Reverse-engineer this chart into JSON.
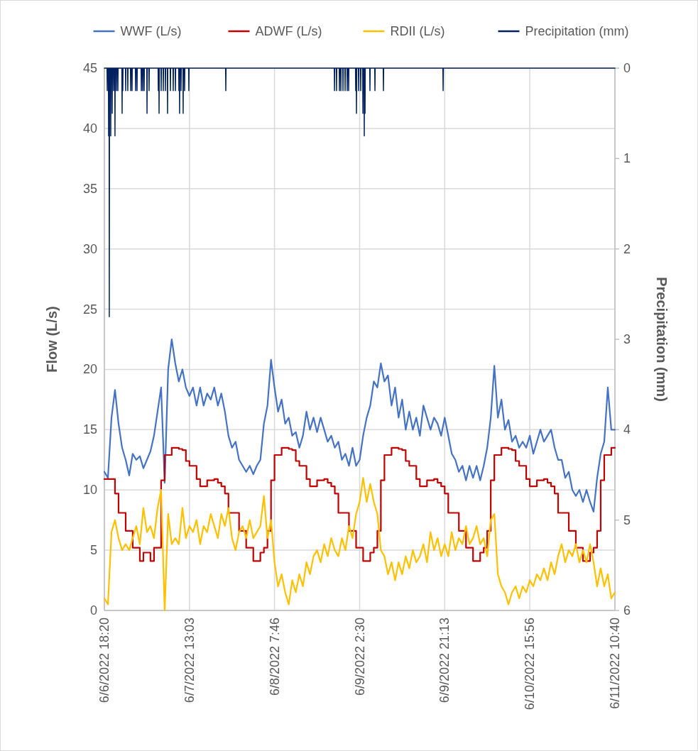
{
  "chart_data": {
    "type": "line",
    "ylabel": "Flow (L/s)",
    "y2label": "Precipitation (mm)",
    "xlim": [
      "2022-06-06T18:20",
      "2022-06-11T10:40"
    ],
    "xticks": [
      {
        "value": "2022-06-06T18:20",
        "label": "6/6/2022 18:20"
      },
      {
        "value": "2022-06-07T13:03",
        "label": "6/7/2022 13:03"
      },
      {
        "value": "2022-06-08T07:46",
        "label": "6/8/2022 7:46"
      },
      {
        "value": "2022-06-09T02:30",
        "label": "6/9/2022 2:30"
      },
      {
        "value": "2022-06-09T21:13",
        "label": "6/9/2022 21:13"
      },
      {
        "value": "2022-06-10T15:56",
        "label": "6/10/2022 15:56"
      },
      {
        "value": "2022-06-11T10:40",
        "label": "6/11/2022 10:40"
      }
    ],
    "ylim": [
      0,
      45
    ],
    "yticks": [
      0,
      5,
      10,
      15,
      20,
      25,
      30,
      35,
      40,
      45
    ],
    "y2lim": [
      6,
      0
    ],
    "y2ticks": [
      0,
      1,
      2,
      3,
      4,
      5,
      6
    ],
    "grid": true,
    "legend": "top",
    "x": [
      "2022-06-06T18:20",
      "2022-06-06T19:07",
      "2022-06-06T19:54",
      "2022-06-06T20:40",
      "2022-06-06T21:27",
      "2022-06-06T22:14",
      "2022-06-06T23:01",
      "2022-06-06T23:48",
      "2022-06-07T00:34",
      "2022-06-07T01:21",
      "2022-06-07T02:08",
      "2022-06-07T02:55",
      "2022-06-07T03:42",
      "2022-06-07T04:28",
      "2022-06-07T05:15",
      "2022-06-07T06:02",
      "2022-06-07T06:49",
      "2022-06-07T07:36",
      "2022-06-07T08:22",
      "2022-06-07T09:09",
      "2022-06-07T09:56",
      "2022-06-07T10:43",
      "2022-06-07T11:30",
      "2022-06-07T12:16",
      "2022-06-07T13:03",
      "2022-06-07T13:50",
      "2022-06-07T14:37",
      "2022-06-07T15:24",
      "2022-06-07T16:10",
      "2022-06-07T16:57",
      "2022-06-07T17:44",
      "2022-06-07T18:31",
      "2022-06-07T19:18",
      "2022-06-07T20:04",
      "2022-06-07T20:51",
      "2022-06-07T21:38",
      "2022-06-07T22:25",
      "2022-06-07T23:12",
      "2022-06-07T23:58",
      "2022-06-08T00:45",
      "2022-06-08T01:32",
      "2022-06-08T02:19",
      "2022-06-08T03:06",
      "2022-06-08T03:52",
      "2022-06-08T04:39",
      "2022-06-08T05:26",
      "2022-06-08T06:13",
      "2022-06-08T07:00",
      "2022-06-08T07:46",
      "2022-06-08T08:33",
      "2022-06-08T09:20",
      "2022-06-08T10:07",
      "2022-06-08T10:54",
      "2022-06-08T11:40",
      "2022-06-08T12:27",
      "2022-06-08T13:14",
      "2022-06-08T14:01",
      "2022-06-08T14:48",
      "2022-06-08T15:34",
      "2022-06-08T16:21",
      "2022-06-08T17:08",
      "2022-06-08T17:55",
      "2022-06-08T18:42",
      "2022-06-08T19:28",
      "2022-06-08T20:15",
      "2022-06-08T21:02",
      "2022-06-08T21:49",
      "2022-06-08T22:36",
      "2022-06-08T23:22",
      "2022-06-09T00:09",
      "2022-06-09T00:56",
      "2022-06-09T01:43",
      "2022-06-09T02:30",
      "2022-06-09T03:16",
      "2022-06-09T04:03",
      "2022-06-09T04:50",
      "2022-06-09T05:37",
      "2022-06-09T06:24",
      "2022-06-09T07:10",
      "2022-06-09T07:57",
      "2022-06-09T08:44",
      "2022-06-09T09:31",
      "2022-06-09T10:18",
      "2022-06-09T11:04",
      "2022-06-09T11:51",
      "2022-06-09T12:38",
      "2022-06-09T13:25",
      "2022-06-09T14:12",
      "2022-06-09T14:58",
      "2022-06-09T15:45",
      "2022-06-09T16:32",
      "2022-06-09T17:19",
      "2022-06-09T18:06",
      "2022-06-09T18:52",
      "2022-06-09T19:39",
      "2022-06-09T20:26",
      "2022-06-09T21:13",
      "2022-06-09T22:00",
      "2022-06-09T22:46",
      "2022-06-09T23:33",
      "2022-06-10T00:20",
      "2022-06-10T01:07",
      "2022-06-10T01:54",
      "2022-06-10T02:40",
      "2022-06-10T03:27",
      "2022-06-10T04:14",
      "2022-06-10T05:01",
      "2022-06-10T05:48",
      "2022-06-10T06:34",
      "2022-06-10T07:21",
      "2022-06-10T08:08",
      "2022-06-10T08:55",
      "2022-06-10T09:42",
      "2022-06-10T10:28",
      "2022-06-10T11:15",
      "2022-06-10T12:02",
      "2022-06-10T12:49",
      "2022-06-10T13:36",
      "2022-06-10T14:22",
      "2022-06-10T15:09",
      "2022-06-10T15:56",
      "2022-06-10T16:43",
      "2022-06-10T17:30",
      "2022-06-10T18:16",
      "2022-06-10T19:03",
      "2022-06-10T19:50",
      "2022-06-10T20:37",
      "2022-06-10T21:24",
      "2022-06-10T22:10",
      "2022-06-10T22:57",
      "2022-06-10T23:44",
      "2022-06-11T00:31",
      "2022-06-11T01:18",
      "2022-06-11T02:04",
      "2022-06-11T02:51",
      "2022-06-11T03:38",
      "2022-06-11T04:25",
      "2022-06-11T05:12",
      "2022-06-11T05:58",
      "2022-06-11T06:45",
      "2022-06-11T07:32",
      "2022-06-11T08:19",
      "2022-06-11T09:06",
      "2022-06-11T09:52",
      "2022-06-11T10:40"
    ],
    "series": [
      {
        "name": "WWF (L/s)",
        "color": "#4472c4",
        "values": [
          11.5,
          11.0,
          16,
          18.3,
          15.5,
          13.5,
          12.5,
          11.2,
          13,
          12.5,
          12.8,
          11.8,
          12.5,
          13.2,
          14.5,
          16.5,
          18.5,
          10.6,
          20,
          22.5,
          20.5,
          19,
          20,
          18.5,
          17.8,
          18.5,
          17,
          18.5,
          17,
          18,
          17.5,
          18.5,
          17,
          18,
          16.5,
          14.5,
          13.5,
          14,
          12.5,
          12,
          11.5,
          12,
          11.3,
          12,
          12.5,
          15.5,
          17,
          20.8,
          18.5,
          16.5,
          17.5,
          15.5,
          16,
          14.5,
          14.8,
          13.5,
          14.5,
          16.5,
          15,
          16,
          14.8,
          16,
          15,
          14,
          14.5,
          13.5,
          14,
          12.5,
          13,
          12,
          13.5,
          12,
          12.5,
          14.5,
          16,
          17,
          19,
          18.5,
          20.5,
          19,
          19.5,
          17,
          18.5,
          16,
          17.5,
          15,
          16.5,
          15,
          16,
          14.5,
          17,
          16,
          15,
          16,
          15.5,
          14.5,
          16,
          14.5,
          13,
          12.5,
          11.5,
          12,
          10.8,
          12,
          11,
          12,
          10.8,
          12,
          13.5,
          16,
          20.3,
          16,
          17.5,
          15,
          15.8,
          14,
          14.5,
          13.5,
          14,
          13.5,
          14.5,
          13,
          14,
          15,
          14,
          14.5,
          15,
          13.5,
          12.5,
          12.5,
          11,
          11.5,
          10,
          9.5,
          10,
          9,
          10,
          9,
          8.2,
          11,
          13,
          14,
          18.5,
          15,
          15
        ]
      },
      {
        "name": "ADWF (L/s)",
        "color": "#c00000",
        "type": "step",
        "values": [
          10.9,
          10.9,
          10.9,
          9.7,
          8.1,
          8.1,
          6.6,
          6.6,
          5.2,
          5.2,
          4.1,
          4.8,
          4.8,
          4.1,
          5.2,
          5.2,
          10.8,
          12.9,
          12.9,
          13.5,
          13.5,
          13.4,
          13.3,
          12.4,
          12.0,
          12.0,
          10.9,
          10.3,
          10.3,
          10.8,
          10.8,
          10.9,
          10.6,
          10.3,
          9.7,
          8.1,
          8.1,
          8.1,
          6.6,
          6.6,
          5.2,
          5.2,
          4.1,
          4.1,
          4.8,
          5.2,
          6.6,
          10.8,
          12.9,
          12.9,
          13.5,
          13.5,
          13.4,
          13.3,
          12.4,
          12.0,
          12.0,
          10.9,
          10.3,
          10.3,
          10.8,
          10.8,
          10.9,
          10.6,
          10.3,
          9.7,
          8.1,
          8.1,
          8.1,
          6.6,
          6.6,
          5.2,
          5.2,
          4.1,
          4.1,
          4.8,
          5.2,
          6.6,
          10.8,
          12.9,
          12.9,
          13.5,
          13.5,
          13.4,
          13.3,
          12.4,
          12.0,
          12.0,
          10.9,
          10.3,
          10.3,
          10.8,
          10.8,
          10.9,
          10.6,
          10.3,
          9.7,
          8.1,
          8.1,
          8.1,
          6.6,
          6.6,
          5.2,
          5.2,
          4.1,
          4.1,
          4.8,
          5.2,
          6.6,
          10.8,
          12.9,
          12.9,
          13.5,
          13.5,
          13.4,
          13.3,
          12.4,
          12.0,
          12.0,
          10.9,
          10.3,
          10.3,
          10.8,
          10.8,
          10.9,
          10.6,
          10.3,
          9.7,
          8.1,
          8.1,
          8.1,
          6.6,
          6.6,
          5.2,
          5.2,
          4.1,
          4.1,
          4.8,
          5.2,
          6.6,
          10.8,
          12.9,
          12.9,
          13.5,
          13.5
        ]
      },
      {
        "name": "RDII (L/s)",
        "color": "#ffc000",
        "values": [
          1.0,
          0.5,
          6.5,
          7.5,
          6,
          5,
          5.5,
          5,
          6,
          7,
          5.5,
          8.5,
          6.5,
          7,
          6,
          8.5,
          10,
          0,
          8,
          5.5,
          6,
          5.5,
          8.5,
          6,
          7,
          6.5,
          7.5,
          5.5,
          7,
          6.5,
          8,
          7,
          6,
          8,
          7,
          8.5,
          6,
          5,
          6.5,
          7,
          6,
          7.5,
          6,
          6.5,
          7,
          9.5,
          6,
          7.5,
          4,
          2,
          3,
          1.5,
          0.5,
          2.5,
          1.5,
          3,
          2,
          4,
          3,
          4.5,
          5,
          4,
          5.5,
          4.5,
          6,
          5,
          4.5,
          6,
          5,
          7,
          6,
          8,
          9,
          11,
          9,
          10.5,
          9,
          8,
          5,
          4.5,
          3,
          4,
          2.5,
          4,
          3,
          4.5,
          3.5,
          5,
          4,
          4.5,
          5.5,
          4,
          6.5,
          5,
          6,
          4.5,
          5.5,
          4.5,
          6.5,
          5,
          6,
          5.5,
          7,
          5.5,
          6,
          7,
          5.5,
          6,
          4.5,
          7.5,
          8,
          3,
          2,
          1.5,
          0.5,
          1.5,
          2,
          1,
          2,
          1.5,
          2.5,
          2,
          3,
          2.5,
          3.5,
          2.5,
          4,
          3,
          4.5,
          5.5,
          4,
          5,
          4.5,
          5.5,
          4,
          5,
          4,
          5.5,
          4,
          2,
          3.5,
          2,
          3,
          1,
          1.5
        ]
      },
      {
        "name": "Precipitation (mm)",
        "color": "#002060",
        "axis": "y2",
        "x": [
          "2022-06-06T18:20",
          "2022-06-06T18:55",
          "2022-06-06T18:58",
          "2022-06-06T19:01",
          "2022-06-06T19:13",
          "2022-06-06T19:16",
          "2022-06-06T19:19",
          "2022-06-06T19:22",
          "2022-06-06T19:25",
          "2022-06-06T19:28",
          "2022-06-06T19:41",
          "2022-06-06T19:44",
          "2022-06-06T19:47",
          "2022-06-06T20:00",
          "2022-06-06T20:03",
          "2022-06-06T20:06",
          "2022-06-06T20:19",
          "2022-06-06T20:22",
          "2022-06-06T20:25",
          "2022-06-06T20:37",
          "2022-06-06T20:40",
          "2022-06-06T20:43",
          "2022-06-06T20:56",
          "2022-06-06T20:59",
          "2022-06-06T21:02",
          "2022-06-06T21:15",
          "2022-06-06T21:18",
          "2022-06-06T21:21",
          "2022-06-06T22:11",
          "2022-06-06T22:14",
          "2022-06-06T22:17",
          "2022-06-06T22:20",
          "2022-06-06T22:23",
          "2022-06-06T22:26",
          "2022-06-06T22:58",
          "2022-06-06T23:01",
          "2022-06-06T23:04",
          "2022-06-06T23:26",
          "2022-06-06T23:29",
          "2022-06-06T23:32",
          "2022-06-07T00:04",
          "2022-06-07T00:07",
          "2022-06-07T00:10",
          "2022-06-07T00:22",
          "2022-06-07T00:25",
          "2022-06-07T00:28",
          "2022-06-07T01:09",
          "2022-06-07T01:12",
          "2022-06-07T01:15",
          "2022-06-07T01:28",
          "2022-06-07T01:31",
          "2022-06-07T01:34",
          "2022-06-07T02:25",
          "2022-06-07T02:28",
          "2022-06-07T02:31",
          "2022-06-07T02:43",
          "2022-06-07T02:46",
          "2022-06-07T02:49",
          "2022-06-07T03:02",
          "2022-06-07T03:05",
          "2022-06-07T03:08",
          "2022-06-07T03:40",
          "2022-06-07T03:43",
          "2022-06-07T03:46",
          "2022-06-07T04:07",
          "2022-06-07T04:10",
          "2022-06-07T04:13",
          "2022-06-07T06:09",
          "2022-06-07T06:12",
          "2022-06-07T06:15",
          "2022-06-07T06:19",
          "2022-06-07T06:22",
          "2022-06-07T06:25",
          "2022-06-07T06:47",
          "2022-06-07T06:50",
          "2022-06-07T06:53",
          "2022-06-07T07:15",
          "2022-06-07T07:18",
          "2022-06-07T07:21",
          "2022-06-07T07:43",
          "2022-06-07T07:46",
          "2022-06-07T07:49",
          "2022-06-07T08:11",
          "2022-06-07T08:14",
          "2022-06-07T08:17",
          "2022-06-07T08:49",
          "2022-06-07T08:52",
          "2022-06-07T08:55",
          "2022-06-07T09:26",
          "2022-06-07T09:29",
          "2022-06-07T09:32",
          "2022-06-07T09:55",
          "2022-06-07T09:58",
          "2022-06-07T10:01",
          "2022-06-07T10:41",
          "2022-06-07T10:44",
          "2022-06-07T10:47",
          "2022-06-07T10:50",
          "2022-06-07T10:53",
          "2022-06-07T10:56",
          "2022-06-07T11:09",
          "2022-06-07T11:12",
          "2022-06-07T11:15",
          "2022-06-07T11:37",
          "2022-06-07T11:40",
          "2022-06-07T11:43",
          "2022-06-07T11:56",
          "2022-06-07T11:59",
          "2022-06-07T12:02",
          "2022-06-07T12:52",
          "2022-06-07T12:55",
          "2022-06-07T12:58",
          "2022-06-07T21:00",
          "2022-06-07T21:03",
          "2022-06-07T21:06",
          "2022-06-08T20:55",
          "2022-06-08T20:58",
          "2022-06-08T21:01",
          "2022-06-08T21:22",
          "2022-06-08T21:25",
          "2022-06-08T21:28",
          "2022-06-08T22:00",
          "2022-06-08T22:03",
          "2022-06-08T22:06",
          "2022-06-08T22:19",
          "2022-06-08T22:22",
          "2022-06-08T22:25",
          "2022-06-08T22:47",
          "2022-06-08T22:50",
          "2022-06-08T22:53",
          "2022-06-08T23:15",
          "2022-06-08T23:18",
          "2022-06-08T23:21",
          "2022-06-08T23:43",
          "2022-06-08T23:46",
          "2022-06-08T23:49",
          "2022-06-09T00:02",
          "2022-06-09T00:05",
          "2022-06-09T00:08",
          "2022-06-09T01:35",
          "2022-06-09T01:38",
          "2022-06-09T01:41",
          "2022-06-09T01:45",
          "2022-06-09T01:48",
          "2022-06-09T01:51",
          "2022-06-09T02:13",
          "2022-06-09T02:16",
          "2022-06-09T02:19",
          "2022-06-09T02:41",
          "2022-06-09T02:44",
          "2022-06-09T02:47",
          "2022-06-09T03:10",
          "2022-06-09T03:13",
          "2022-06-09T03:16",
          "2022-06-09T03:28",
          "2022-06-09T03:31",
          "2022-06-09T03:34",
          "2022-06-09T03:38",
          "2022-06-09T03:41",
          "2022-06-09T03:44",
          "2022-06-09T04:43",
          "2022-06-09T04:46",
          "2022-06-09T04:49",
          "2022-06-09T05:49",
          "2022-06-09T05:52",
          "2022-06-09T05:55",
          "2022-06-09T07:41",
          "2022-06-09T07:44",
          "2022-06-09T07:47",
          "2022-06-09T20:49",
          "2022-06-09T20:52",
          "2022-06-09T20:55",
          "2022-06-11T10:40"
        ],
        "values": [
          0,
          0,
          0.25,
          0,
          0,
          0.75,
          0,
          0,
          2.75,
          0,
          0,
          0.75,
          0,
          0,
          0.5,
          0,
          0,
          0.25,
          0,
          0,
          0.75,
          0,
          0,
          0.25,
          0,
          0,
          0.25,
          0,
          0,
          0.5,
          0,
          0,
          0.25,
          0,
          0,
          0.25,
          0,
          0,
          0.25,
          0,
          0,
          0.25,
          0,
          0,
          0.25,
          0,
          0,
          0.25,
          0,
          0,
          0.25,
          0,
          0,
          0.25,
          0,
          0,
          0.25,
          0,
          0,
          0.25,
          0,
          0,
          0.5,
          0,
          0,
          0.25,
          0,
          0,
          0.25,
          0,
          0,
          0.5,
          0,
          0,
          0.25,
          0,
          0,
          0.25,
          0,
          0,
          0.25,
          0,
          0,
          0.5,
          0,
          0,
          0.25,
          0,
          0,
          0.25,
          0,
          0,
          0.25,
          0,
          0,
          0.25,
          0,
          0,
          0.5,
          0,
          0,
          0.25,
          0,
          0,
          0.5,
          0,
          0,
          0.25,
          0,
          0,
          0.25,
          0,
          0,
          0.25,
          0,
          0,
          0.25,
          0,
          0,
          0.25,
          0,
          0,
          0.25,
          0,
          0,
          0.25,
          0,
          0,
          0.25,
          0,
          0,
          0.25,
          0,
          0,
          0.25,
          0,
          0,
          0.25,
          0,
          0,
          0.25,
          0,
          0,
          0.5,
          0,
          0,
          0.25,
          0,
          0,
          0.25,
          0,
          0,
          0.5,
          0,
          0,
          0.75,
          0,
          0,
          0.5,
          0,
          0,
          0.25,
          0,
          0,
          0.25,
          0,
          0,
          0.25,
          0,
          0,
          0.25,
          0,
          0
        ]
      }
    ]
  }
}
